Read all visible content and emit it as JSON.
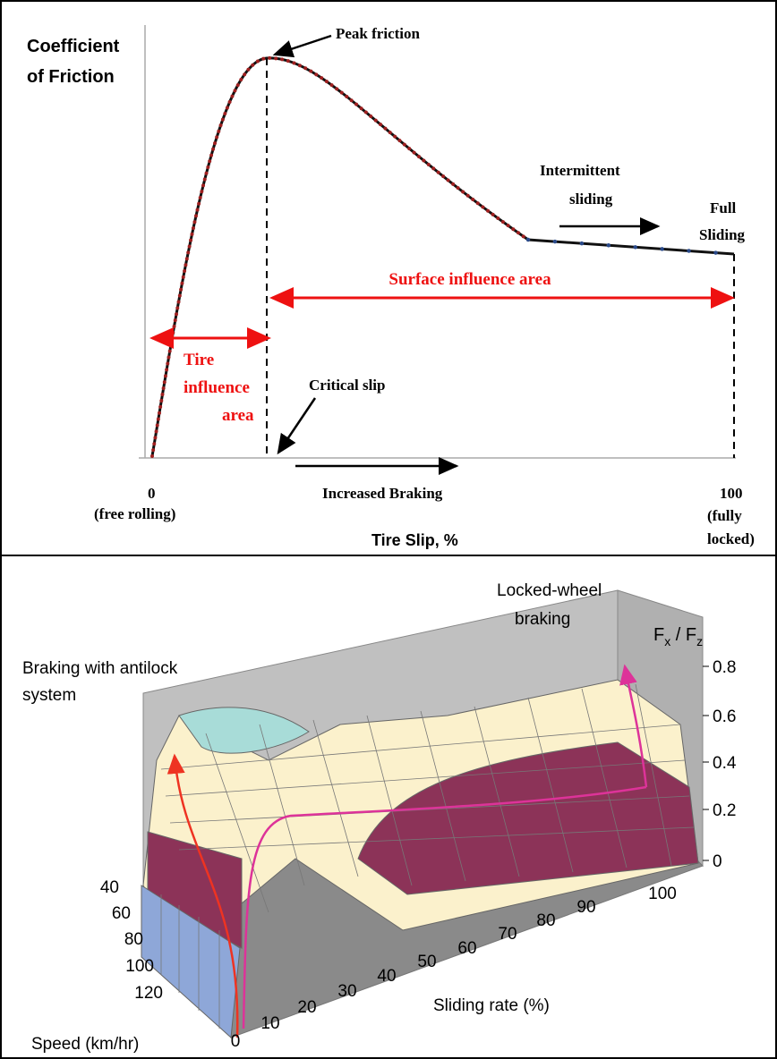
{
  "top_panel": {
    "y_axis_title": [
      "Coefficient",
      "of Friction"
    ],
    "peak_label": "Peak friction",
    "intermittent_label": [
      "Intermittent",
      "sliding"
    ],
    "full_label": [
      "Full",
      "Sliding"
    ],
    "surface_area_label": "Surface influence area",
    "tire_area_label": [
      "Tire",
      "influence",
      "area"
    ],
    "critical_label": "Critical slip",
    "braking_label": "Increased Braking",
    "x_start": [
      "0",
      "(free rolling)"
    ],
    "x_end": [
      "100",
      "(fully",
      "locked)"
    ],
    "x_axis_title": "Tire Slip, %"
  },
  "bottom_panel": {
    "locked_label": [
      "Locked-wheel",
      "braking"
    ],
    "antilock_label": [
      "Braking with antilock",
      "system"
    ],
    "z_axis_title": [
      "F",
      "x",
      " / F",
      "z"
    ],
    "z_ticks": [
      "0.8",
      "0.6",
      "0.4",
      "0.2",
      "0"
    ],
    "speed_ticks": [
      "40",
      "60",
      "80",
      "100",
      "120"
    ],
    "speed_title": "Speed (km/hr)",
    "sliding_ticks": [
      "0",
      "10",
      "20",
      "30",
      "40",
      "50",
      "60",
      "70",
      "80",
      "90",
      "100"
    ],
    "sliding_title": "Sliding rate (%)"
  }
}
